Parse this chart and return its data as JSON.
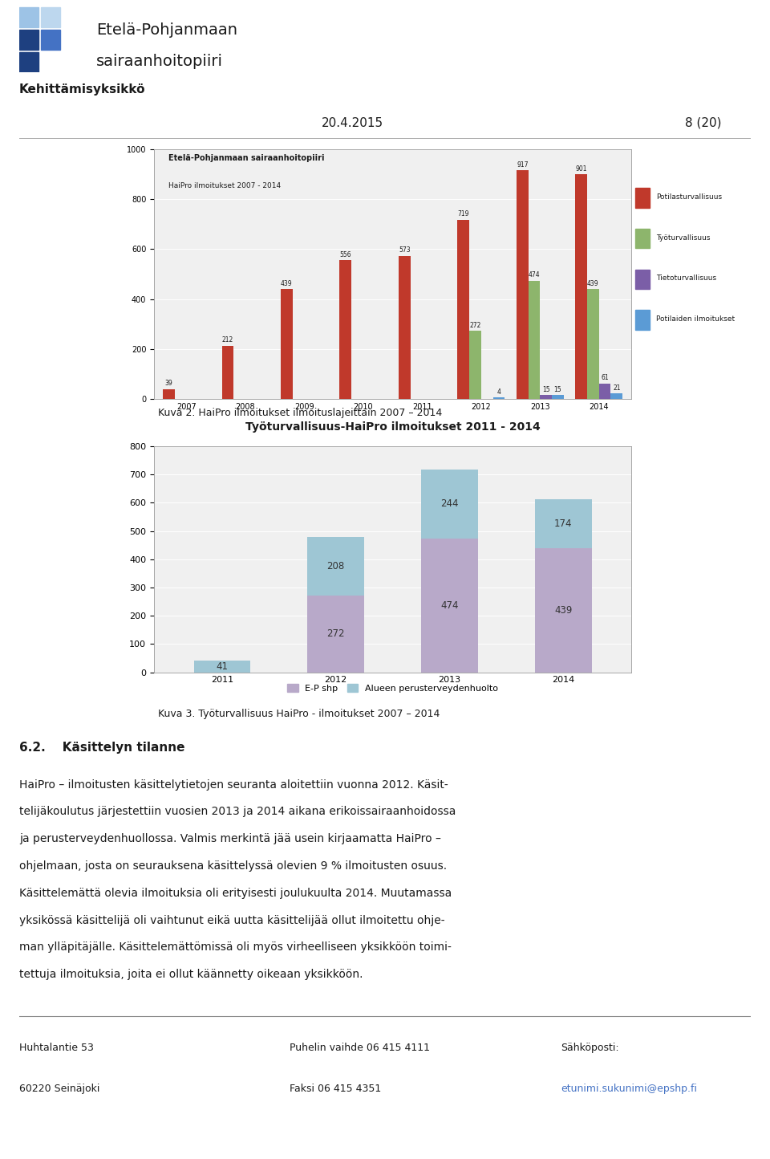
{
  "page_bg": "#ffffff",
  "header": {
    "org_line1": "Etelä-Pohjanmaan",
    "org_line2": "sairaanhoitopiiri",
    "dept": "Kehittämisyksikkö",
    "date": "20.4.2015",
    "page": "8 (20)"
  },
  "chart1": {
    "title_line1": "Etelä-Pohjanmaan sairaanhoitopiiri",
    "title_line2": "HaiPro ilmoitukset 2007 - 2014",
    "years": [
      2007,
      2008,
      2009,
      2010,
      2011,
      2012,
      2013,
      2014
    ],
    "potilasturvallisuus": [
      39,
      212,
      439,
      556,
      573,
      719,
      917,
      901
    ],
    "tyoturvallisuus": [
      0,
      0,
      0,
      0,
      0,
      272,
      474,
      439
    ],
    "tietoturvallisuus": [
      0,
      0,
      0,
      0,
      0,
      0,
      15,
      61
    ],
    "potilaiden": [
      0,
      0,
      0,
      0,
      0,
      4,
      15,
      21
    ],
    "color_potilasturvallisuus": "#c0392b",
    "color_tyoturvallisuus": "#8db56c",
    "color_tietoturvallisuus": "#7b5ea7",
    "color_potilaiden": "#5b9bd5",
    "legend_labels": [
      "Potilasturvallisuus",
      "Työturvallisuus",
      "Tietoturvallisuus",
      "Potilaiden ilmoitukset"
    ],
    "ylim": [
      0,
      1000
    ],
    "caption": "Kuva 2. HaiPro ilmoitukset ilmoituslajeittain 2007 – 2014"
  },
  "chart2": {
    "title": "Työturvallisuus-HaiPro ilmoitukset 2011 - 2014",
    "years": [
      2011,
      2012,
      2013,
      2014
    ],
    "ep_shp": [
      0,
      272,
      474,
      439
    ],
    "perusterveydenhuolto": [
      41,
      208,
      244,
      174
    ],
    "color_ep_shp": "#b8a9c9",
    "color_perusterveydenhuolto": "#9ec6d4",
    "legend_ep": "E-P shp",
    "legend_peruste": "Alueen perusterveydenhuolto",
    "ylim": [
      0,
      800
    ],
    "caption": "Kuva 3. Työturvallisuus HaiPro - ilmoitukset 2007 – 2014"
  },
  "section_title": "6.2.    Käsittelyn tilanne",
  "body_lines": [
    "HaiPro – ilmoitusten käsittelytietojen seuranta aloitettiin vuonna 2012. Käsit-",
    "telijäkoulutus järjestettiin vuosien 2013 ja 2014 aikana erikoissairaanhoidossa",
    "ja perusterveydenhuollossa. Valmis merkintä jää usein kirjaamatta HaiPro –",
    "ohjelmaan, josta on seurauksena käsittelyssä olevien 9 % ilmoitusten osuus.",
    "Käsittelemättä olevia ilmoituksia oli erityisesti joulukuulta 2014. Muutamassa",
    "yksikössä käsittelijä oli vaihtunut eikä uutta käsittelijää ollut ilmoitettu ohje-",
    "man ylläpitäjälle. Käsittelemättömissä oli myös virheelliseen yksikköön toimi-",
    "tettuja ilmoituksia, joita ei ollut käännetty oikeaan yksikköön."
  ],
  "footer": {
    "left_line1": "Huhtalantie 53",
    "left_line2": "60220 Seinäjoki",
    "mid_line1": "Puhelin vaihde 06 415 4111",
    "mid_line2": "Faksi 06 415 4351",
    "right_line1": "Sähköposti:",
    "right_line2": "etunimi.sukunimi@epshp.fi"
  }
}
